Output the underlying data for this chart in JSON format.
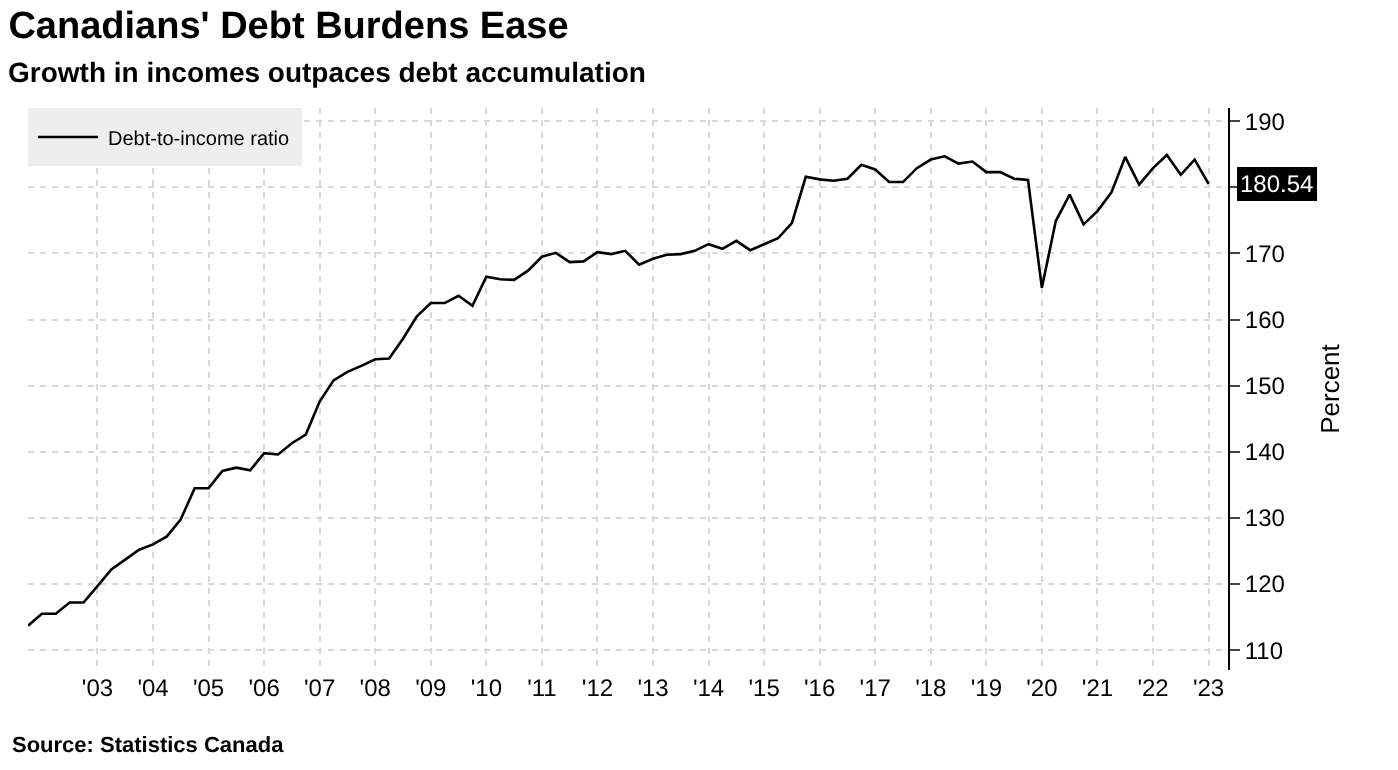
{
  "chart_data": {
    "type": "line",
    "title": "Canadians' Debt Burdens Ease",
    "subtitle": "Growth in incomes outpaces debt accumulation",
    "ylabel": "Percent",
    "x": [
      2001.75,
      2002,
      2002.25,
      2002.5,
      2002.75,
      2003,
      2003.25,
      2003.5,
      2003.75,
      2004,
      2004.25,
      2004.5,
      2004.75,
      2005,
      2005.25,
      2005.5,
      2005.75,
      2006,
      2006.25,
      2006.5,
      2006.75,
      2007,
      2007.25,
      2007.5,
      2007.75,
      2008,
      2008.25,
      2008.5,
      2008.75,
      2009,
      2009.25,
      2009.5,
      2009.75,
      2010,
      2010.25,
      2010.5,
      2010.75,
      2011,
      2011.25,
      2011.5,
      2011.75,
      2012,
      2012.25,
      2012.5,
      2012.75,
      2013,
      2013.25,
      2013.5,
      2013.75,
      2014,
      2014.25,
      2014.5,
      2014.75,
      2015,
      2015.25,
      2015.5,
      2015.75,
      2016,
      2016.25,
      2016.5,
      2016.75,
      2017,
      2017.25,
      2017.5,
      2017.75,
      2018,
      2018.25,
      2018.5,
      2018.75,
      2019,
      2019.25,
      2019.5,
      2019.75,
      2020,
      2020.25,
      2020.5,
      2020.75,
      2021,
      2021.25,
      2021.5,
      2021.75,
      2022,
      2022.25,
      2022.5,
      2022.75,
      2023
    ],
    "series": [
      {
        "name": "Debt-to-income ratio",
        "color": "#000000",
        "values": [
          113.7,
          115.5,
          115.5,
          117.2,
          117.2,
          119.7,
          122.2,
          123.7,
          125.2,
          126.0,
          127.2,
          129.8,
          134.5,
          134.5,
          137.1,
          137.6,
          137.2,
          139.8,
          139.6,
          141.3,
          142.6,
          147.6,
          150.8,
          152.1,
          153.0,
          154.0,
          154.1,
          157.1,
          160.5,
          162.5,
          162.5,
          163.6,
          162.1,
          166.5,
          166.1,
          166.0,
          167.4,
          169.5,
          170.1,
          168.7,
          168.8,
          170.2,
          169.9,
          170.4,
          168.3,
          169.2,
          169.8,
          169.9,
          170.4,
          171.4,
          170.7,
          171.9,
          170.5,
          171.4,
          172.3,
          174.6,
          181.6,
          181.2,
          181.0,
          181.3,
          183.4,
          182.7,
          180.8,
          180.8,
          182.9,
          184.2,
          184.7,
          183.6,
          183.9,
          182.3,
          182.3,
          181.3,
          181.1,
          164.8,
          174.9,
          178.9,
          174.4,
          176.4,
          179.2,
          184.6,
          180.4,
          182.9,
          184.9,
          181.9,
          184.2,
          180.54
        ],
        "value_labels": [
          null,
          null,
          null,
          null,
          null,
          null,
          null,
          null,
          null,
          null,
          null,
          null,
          null,
          null,
          null,
          null,
          null,
          null,
          null,
          null,
          null,
          null,
          null,
          null,
          null,
          null,
          null,
          null,
          null,
          null,
          null,
          null,
          null,
          null,
          null,
          null,
          null,
          null,
          null,
          null,
          null,
          null,
          null,
          null,
          null,
          null,
          null,
          null,
          null,
          null,
          null,
          null,
          null,
          null,
          null,
          null,
          null,
          null,
          null,
          null,
          null,
          null,
          null,
          null,
          null,
          null,
          null,
          null,
          null,
          null,
          null,
          null,
          null,
          null,
          null,
          null,
          null,
          null,
          null,
          null,
          null,
          null,
          null,
          null,
          null,
          "180.54"
        ]
      }
    ],
    "xlim": [
      2001.75,
      2023.35
    ],
    "ylim": [
      107,
      192
    ],
    "xticks": [
      {
        "value": 2003,
        "label": "'03"
      },
      {
        "value": 2004,
        "label": "'04"
      },
      {
        "value": 2005,
        "label": "'05"
      },
      {
        "value": 2006,
        "label": "'06"
      },
      {
        "value": 2007,
        "label": "'07"
      },
      {
        "value": 2008,
        "label": "'08"
      },
      {
        "value": 2009,
        "label": "'09"
      },
      {
        "value": 2010,
        "label": "'10"
      },
      {
        "value": 2011,
        "label": "'11"
      },
      {
        "value": 2012,
        "label": "'12"
      },
      {
        "value": 2013,
        "label": "'13"
      },
      {
        "value": 2014,
        "label": "'14"
      },
      {
        "value": 2015,
        "label": "'15"
      },
      {
        "value": 2016,
        "label": "'16"
      },
      {
        "value": 2017,
        "label": "'17"
      },
      {
        "value": 2018,
        "label": "'18"
      },
      {
        "value": 2019,
        "label": "'19"
      },
      {
        "value": 2020,
        "label": "'20"
      },
      {
        "value": 2021,
        "label": "'21"
      },
      {
        "value": 2022,
        "label": "'22"
      },
      {
        "value": 2023,
        "label": "'23"
      }
    ],
    "yticks": [
      110,
      120,
      130,
      140,
      150,
      160,
      170,
      {
        "value": 180,
        "label": null
      },
      190
    ],
    "annotations": [
      "Source: Statistics Canada"
    ],
    "grid": true,
    "legend": "top left",
    "marker": "none",
    "line_style": "solid"
  }
}
